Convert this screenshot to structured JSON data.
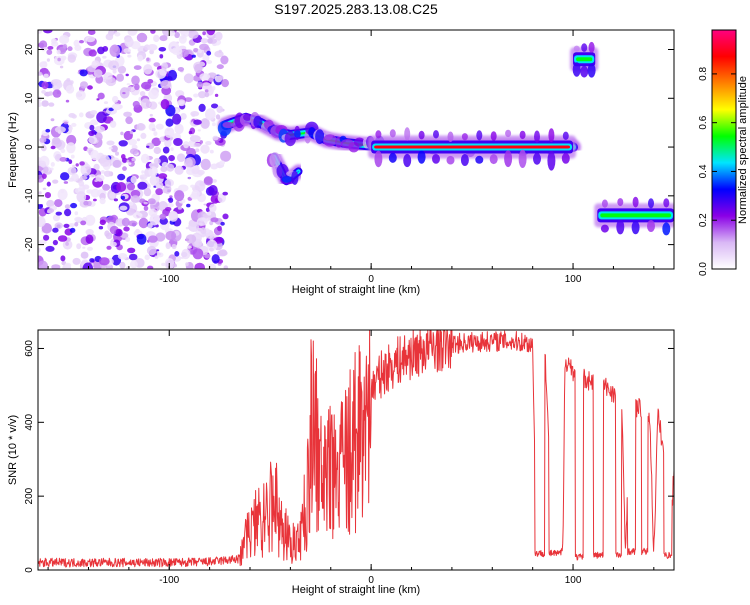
{
  "title": "S197.2025.283.13.08.C25",
  "colors": {
    "snr_line": "#e8343a",
    "axis": "#000000",
    "background": "#ffffff"
  },
  "chart_data": [
    {
      "type": "heatmap",
      "name": "spectrogram",
      "xlabel": "Height of straight line (km)",
      "ylabel": "Frequency (Hz)",
      "xlim": [
        -165,
        150
      ],
      "ylim": [
        -25,
        24
      ],
      "xticks": [
        -100,
        0,
        100
      ],
      "yticks": [
        -20,
        -10,
        0,
        10,
        20
      ],
      "colorbar": {
        "label": "Normalized spectral amplitude",
        "range": [
          0.0,
          0.98
        ],
        "ticks": [
          "0.0",
          "0.2",
          "0.4",
          "0.6",
          "0.8"
        ],
        "tick_values": [
          0.0,
          0.2,
          0.4,
          0.6,
          0.8
        ],
        "colors": [
          "#ffffff",
          "#d9b8f5",
          "#8a00e6",
          "#0000ff",
          "#00e5ff",
          "#00ff00",
          "#ffff00",
          "#ff8000",
          "#ff0000",
          "#ff0080"
        ]
      },
      "features": [
        {
          "name": "noise-region",
          "x_range": [
            -165,
            -72
          ],
          "f_range": [
            -25,
            24
          ],
          "amplitude": 0.15
        },
        {
          "name": "onset-trace",
          "points": [
            [
              -72,
              4.5
            ],
            [
              -62,
              6
            ],
            [
              -55,
              5
            ],
            [
              -46,
              3
            ],
            [
              -40,
              2.5
            ],
            [
              -30,
              3
            ],
            [
              -22,
              1.5
            ],
            [
              -12,
              0.8
            ],
            [
              0,
              0.3
            ],
            [
              10,
              0
            ],
            [
              50,
              0
            ],
            [
              100,
              0
            ]
          ],
          "amplitude": 0.6
        },
        {
          "name": "branch-trace",
          "points": [
            [
              -48,
              -2
            ],
            [
              -42,
              -7
            ],
            [
              -36,
              -5
            ]
          ],
          "amplitude": 0.3
        },
        {
          "name": "main-carrier",
          "x_range": [
            0,
            100
          ],
          "freq": 0,
          "amplitude": 0.95
        },
        {
          "name": "upper-segment",
          "x_range": [
            100,
            111
          ],
          "freq": 18,
          "amplitude": 0.6
        },
        {
          "name": "lower-segment",
          "x_range": [
            112,
            150
          ],
          "freq": -14,
          "amplitude": 0.6
        }
      ]
    },
    {
      "type": "line",
      "name": "snr",
      "xlabel": "Height of straight line (km)",
      "ylabel": "SNR (10 * v/v)",
      "xlim": [
        -165,
        150
      ],
      "ylim": [
        0,
        650
      ],
      "xticks": [
        -100,
        0,
        100
      ],
      "yticks": [
        0,
        200,
        400,
        600
      ],
      "series": [
        {
          "name": "SNR",
          "x": [
            -165,
            -140,
            -120,
            -100,
            -80,
            -65,
            -62,
            -60,
            -55,
            -52,
            -48,
            -44,
            -40,
            -36,
            -32,
            -29,
            -25,
            -20,
            -15,
            -10,
            -5,
            0,
            5,
            10,
            15,
            20,
            25,
            30,
            35,
            40,
            45,
            50,
            55,
            60,
            65,
            70,
            75,
            80,
            82,
            84,
            86,
            90,
            95,
            96,
            98,
            100,
            105,
            110,
            112,
            114,
            118,
            124,
            126,
            128,
            132,
            138,
            140,
            142,
            145,
            148,
            150
          ],
          "y": [
            20,
            20,
            20,
            20,
            22,
            30,
            110,
            130,
            160,
            180,
            230,
            130,
            90,
            80,
            230,
            560,
            300,
            330,
            370,
            420,
            450,
            490,
            530,
            555,
            570,
            585,
            595,
            605,
            610,
            612,
            615,
            617,
            618,
            620,
            620,
            619,
            618,
            610,
            40,
            50,
            620,
            40,
            50,
            570,
            560,
            540,
            520,
            510,
            40,
            500,
            490,
            460,
            40,
            450,
            440,
            420,
            40,
            420,
            320,
            40,
            280
          ]
        }
      ],
      "dropouts": [
        {
          "x": [
            81,
            86
          ],
          "low": 45
        },
        {
          "x": [
            88,
            94
          ],
          "low": 45
        },
        {
          "x": [
            101,
            105
          ],
          "low": 35
        },
        {
          "x": [
            110,
            115
          ],
          "low": 40
        },
        {
          "x": [
            121,
            124
          ],
          "low": 40
        },
        {
          "x": [
            127,
            131
          ],
          "low": 50
        },
        {
          "x": [
            134,
            137
          ],
          "low": 50
        },
        {
          "x": [
            145,
            149
          ],
          "low": 40
        }
      ]
    }
  ]
}
